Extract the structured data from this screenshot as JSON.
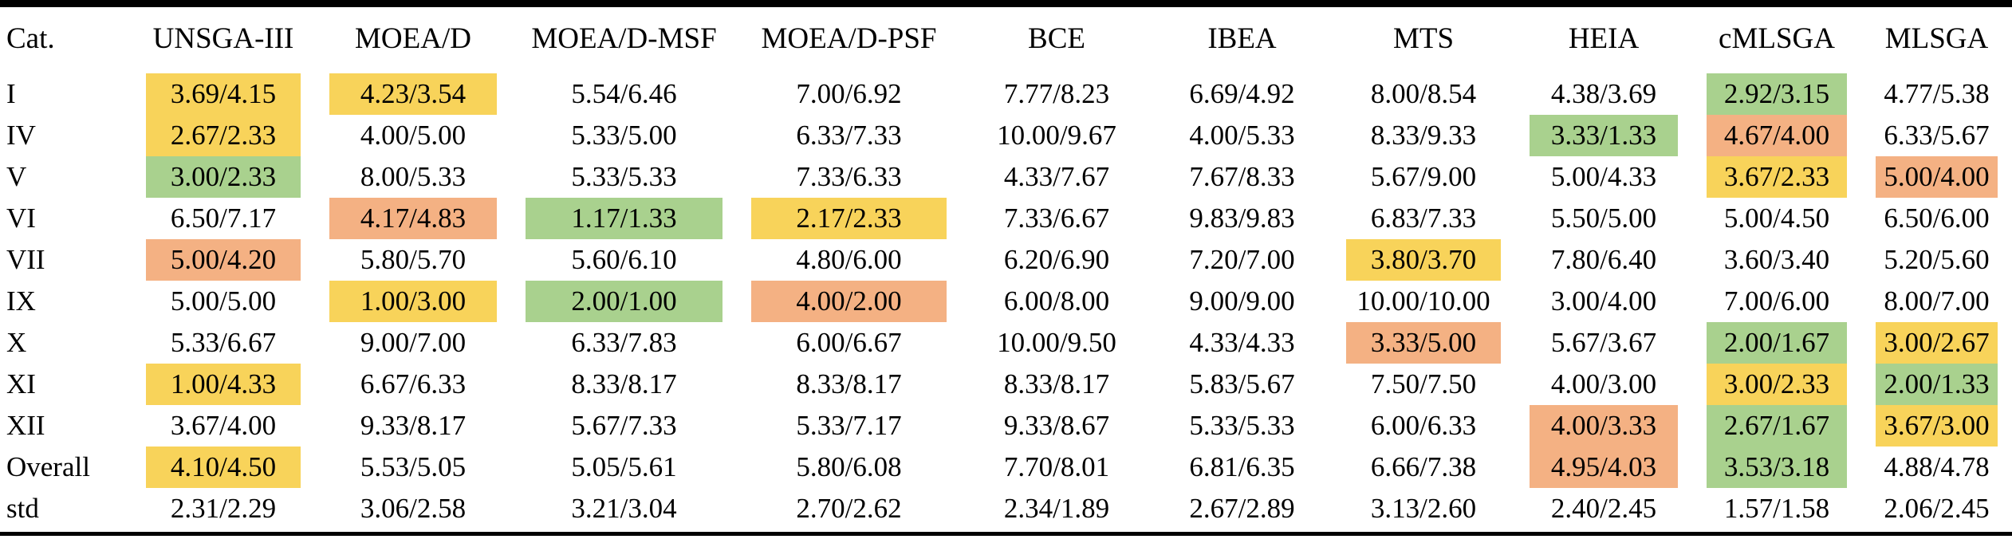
{
  "table": {
    "highlight_colors": {
      "yellow": "#F8D35A",
      "green": "#A9D18E",
      "orange": "#F4B183"
    },
    "columns": [
      "Cat.",
      "UNSGA-III",
      "MOEA/D",
      "MOEA/D-MSF",
      "MOEA/D-PSF",
      "BCE",
      "IBEA",
      "MTS",
      "HEIA",
      "cMLSGA",
      "MLSGA"
    ],
    "rows": [
      {
        "label": "I",
        "cells": [
          {
            "v": "3.69/4.15",
            "hl": "yellow"
          },
          {
            "v": "4.23/3.54",
            "hl": "yellow"
          },
          {
            "v": "5.54/6.46",
            "hl": null
          },
          {
            "v": "7.00/6.92",
            "hl": null
          },
          {
            "v": "7.77/8.23",
            "hl": null
          },
          {
            "v": "6.69/4.92",
            "hl": null
          },
          {
            "v": "8.00/8.54",
            "hl": null
          },
          {
            "v": "4.38/3.69",
            "hl": null
          },
          {
            "v": "2.92/3.15",
            "hl": "green"
          },
          {
            "v": "4.77/5.38",
            "hl": null
          }
        ]
      },
      {
        "label": "IV",
        "cells": [
          {
            "v": "2.67/2.33",
            "hl": "yellow"
          },
          {
            "v": "4.00/5.00",
            "hl": null
          },
          {
            "v": "5.33/5.00",
            "hl": null
          },
          {
            "v": "6.33/7.33",
            "hl": null
          },
          {
            "v": "10.00/9.67",
            "hl": null
          },
          {
            "v": "4.00/5.33",
            "hl": null
          },
          {
            "v": "8.33/9.33",
            "hl": null
          },
          {
            "v": "3.33/1.33",
            "hl": "green"
          },
          {
            "v": "4.67/4.00",
            "hl": "orange"
          },
          {
            "v": "6.33/5.67",
            "hl": null
          }
        ]
      },
      {
        "label": "V",
        "cells": [
          {
            "v": "3.00/2.33",
            "hl": "green"
          },
          {
            "v": "8.00/5.33",
            "hl": null
          },
          {
            "v": "5.33/5.33",
            "hl": null
          },
          {
            "v": "7.33/6.33",
            "hl": null
          },
          {
            "v": "4.33/7.67",
            "hl": null
          },
          {
            "v": "7.67/8.33",
            "hl": null
          },
          {
            "v": "5.67/9.00",
            "hl": null
          },
          {
            "v": "5.00/4.33",
            "hl": null
          },
          {
            "v": "3.67/2.33",
            "hl": "yellow"
          },
          {
            "v": "5.00/4.00",
            "hl": "orange"
          }
        ]
      },
      {
        "label": "VI",
        "cells": [
          {
            "v": "6.50/7.17",
            "hl": null
          },
          {
            "v": "4.17/4.83",
            "hl": "orange"
          },
          {
            "v": "1.17/1.33",
            "hl": "green"
          },
          {
            "v": "2.17/2.33",
            "hl": "yellow"
          },
          {
            "v": "7.33/6.67",
            "hl": null
          },
          {
            "v": "9.83/9.83",
            "hl": null
          },
          {
            "v": "6.83/7.33",
            "hl": null
          },
          {
            "v": "5.50/5.00",
            "hl": null
          },
          {
            "v": "5.00/4.50",
            "hl": null
          },
          {
            "v": "6.50/6.00",
            "hl": null
          }
        ]
      },
      {
        "label": "VII",
        "cells": [
          {
            "v": "5.00/4.20",
            "hl": "orange"
          },
          {
            "v": "5.80/5.70",
            "hl": null
          },
          {
            "v": "5.60/6.10",
            "hl": null
          },
          {
            "v": "4.80/6.00",
            "hl": null
          },
          {
            "v": "6.20/6.90",
            "hl": null
          },
          {
            "v": "7.20/7.00",
            "hl": null
          },
          {
            "v": "3.80/3.70",
            "hl": "yellow"
          },
          {
            "v": "7.80/6.40",
            "hl": null
          },
          {
            "v": "3.60/3.40",
            "hl": null
          },
          {
            "v": "5.20/5.60",
            "hl": null
          }
        ]
      },
      {
        "label": "IX",
        "cells": [
          {
            "v": "5.00/5.00",
            "hl": null
          },
          {
            "v": "1.00/3.00",
            "hl": "yellow"
          },
          {
            "v": "2.00/1.00",
            "hl": "green"
          },
          {
            "v": "4.00/2.00",
            "hl": "orange"
          },
          {
            "v": "6.00/8.00",
            "hl": null
          },
          {
            "v": "9.00/9.00",
            "hl": null
          },
          {
            "v": "10.00/10.00",
            "hl": null
          },
          {
            "v": "3.00/4.00",
            "hl": null
          },
          {
            "v": "7.00/6.00",
            "hl": null
          },
          {
            "v": "8.00/7.00",
            "hl": null
          }
        ]
      },
      {
        "label": "X",
        "cells": [
          {
            "v": "5.33/6.67",
            "hl": null
          },
          {
            "v": "9.00/7.00",
            "hl": null
          },
          {
            "v": "6.33/7.83",
            "hl": null
          },
          {
            "v": "6.00/6.67",
            "hl": null
          },
          {
            "v": "10.00/9.50",
            "hl": null
          },
          {
            "v": "4.33/4.33",
            "hl": null
          },
          {
            "v": "3.33/5.00",
            "hl": "orange"
          },
          {
            "v": "5.67/3.67",
            "hl": null
          },
          {
            "v": "2.00/1.67",
            "hl": "green"
          },
          {
            "v": "3.00/2.67",
            "hl": "yellow"
          }
        ]
      },
      {
        "label": "XI",
        "cells": [
          {
            "v": "1.00/4.33",
            "hl": "yellow"
          },
          {
            "v": "6.67/6.33",
            "hl": null
          },
          {
            "v": "8.33/8.17",
            "hl": null
          },
          {
            "v": "8.33/8.17",
            "hl": null
          },
          {
            "v": "8.33/8.17",
            "hl": null
          },
          {
            "v": "5.83/5.67",
            "hl": null
          },
          {
            "v": "7.50/7.50",
            "hl": null
          },
          {
            "v": "4.00/3.00",
            "hl": null
          },
          {
            "v": "3.00/2.33",
            "hl": "yellow"
          },
          {
            "v": "2.00/1.33",
            "hl": "green"
          }
        ]
      },
      {
        "label": "XII",
        "cells": [
          {
            "v": "3.67/4.00",
            "hl": null
          },
          {
            "v": "9.33/8.17",
            "hl": null
          },
          {
            "v": "5.67/7.33",
            "hl": null
          },
          {
            "v": "5.33/7.17",
            "hl": null
          },
          {
            "v": "9.33/8.67",
            "hl": null
          },
          {
            "v": "5.33/5.33",
            "hl": null
          },
          {
            "v": "6.00/6.33",
            "hl": null
          },
          {
            "v": "4.00/3.33",
            "hl": "orange"
          },
          {
            "v": "2.67/1.67",
            "hl": "green"
          },
          {
            "v": "3.67/3.00",
            "hl": "yellow"
          }
        ]
      },
      {
        "label": "Overall",
        "cells": [
          {
            "v": "4.10/4.50",
            "hl": "yellow"
          },
          {
            "v": "5.53/5.05",
            "hl": null
          },
          {
            "v": "5.05/5.61",
            "hl": null
          },
          {
            "v": "5.80/6.08",
            "hl": null
          },
          {
            "v": "7.70/8.01",
            "hl": null
          },
          {
            "v": "6.81/6.35",
            "hl": null
          },
          {
            "v": "6.66/7.38",
            "hl": null
          },
          {
            "v": "4.95/4.03",
            "hl": "orange"
          },
          {
            "v": "3.53/3.18",
            "hl": "green"
          },
          {
            "v": "4.88/4.78",
            "hl": null
          }
        ]
      },
      {
        "label": "std",
        "cells": [
          {
            "v": "2.31/2.29",
            "hl": null
          },
          {
            "v": "3.06/2.58",
            "hl": null
          },
          {
            "v": "3.21/3.04",
            "hl": null
          },
          {
            "v": "2.70/2.62",
            "hl": null
          },
          {
            "v": "2.34/1.89",
            "hl": null
          },
          {
            "v": "2.67/2.89",
            "hl": null
          },
          {
            "v": "3.13/2.60",
            "hl": null
          },
          {
            "v": "2.40/2.45",
            "hl": null
          },
          {
            "v": "1.57/1.58",
            "hl": null
          },
          {
            "v": "2.06/2.45",
            "hl": null
          }
        ]
      }
    ]
  }
}
